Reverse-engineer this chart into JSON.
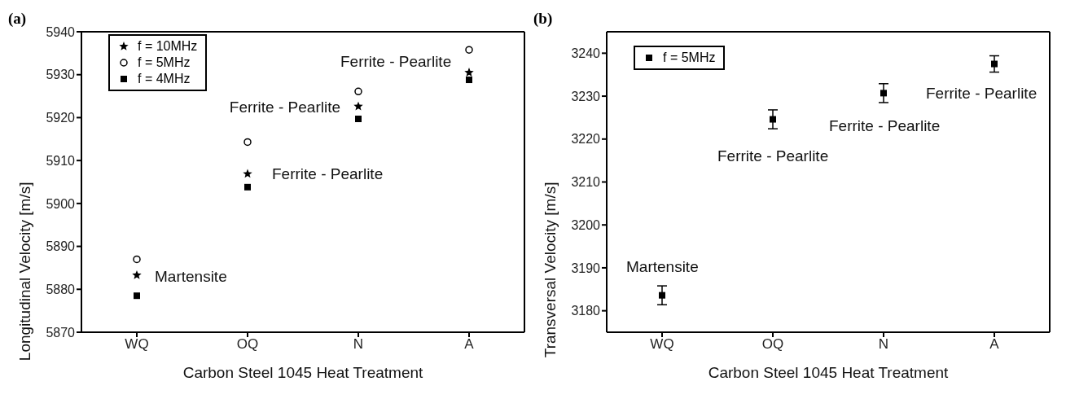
{
  "chart_data": [
    {
      "type": "scatter",
      "title": "(a)",
      "xlabel": "Carbon Steel 1045 Heat Treatment",
      "ylabel": "Longitudinal Velocity [m/s]",
      "categories": [
        "WQ",
        "OQ",
        "N",
        "A"
      ],
      "ylim": [
        5870,
        5940
      ],
      "yticks": [
        5870,
        5880,
        5890,
        5900,
        5910,
        5920,
        5930,
        5940
      ],
      "legend": "top left",
      "series": [
        {
          "name": "f = 10MHz",
          "color": "#000000",
          "marker": "star",
          "values": [
            5883.3,
            5906.9,
            5922.6,
            5930.5
          ]
        },
        {
          "name": "f = 5MHz",
          "color": "#000000",
          "marker": "circle",
          "values": [
            5887,
            5914.3,
            5926.1,
            5935.8
          ]
        },
        {
          "name": "f = 4MHz",
          "color": "#000000",
          "marker": "square",
          "values": [
            5878.5,
            5903.8,
            5919.7,
            5928.8
          ]
        }
      ],
      "annotations": [
        {
          "text": "Martensite",
          "x": "WQ",
          "y": 5883
        },
        {
          "text": "Ferrite - Pearlite",
          "x": "OQ",
          "y": 5907
        },
        {
          "text": "Ferrite - Pearlite",
          "x": "N",
          "y": 5922.5
        },
        "Ferrite - Pearlite"
      ]
    },
    {
      "type": "scatter",
      "title": "(b)",
      "xlabel": "Carbon Steel 1045 Heat Treatment",
      "ylabel": "Transversal Velocity [m/s]",
      "categories": [
        "WQ",
        "OQ",
        "N",
        "A"
      ],
      "ylim": [
        3175,
        3245
      ],
      "yticks": [
        3180,
        3190,
        3200,
        3210,
        3220,
        3230,
        3240
      ],
      "legend": "top left",
      "series": [
        {
          "name": "f = 5MHz",
          "color": "#000000",
          "marker": "square",
          "values": [
            3183.6,
            3224.6,
            3230.7,
            3237.5
          ],
          "errors": [
            2.2,
            2.2,
            2.2,
            1.9
          ]
        }
      ],
      "annotations": [
        "Martensite",
        "Ferrite - Pearlite",
        "Ferrite - Pearlite",
        "Ferrite - Pearlite"
      ]
    }
  ]
}
